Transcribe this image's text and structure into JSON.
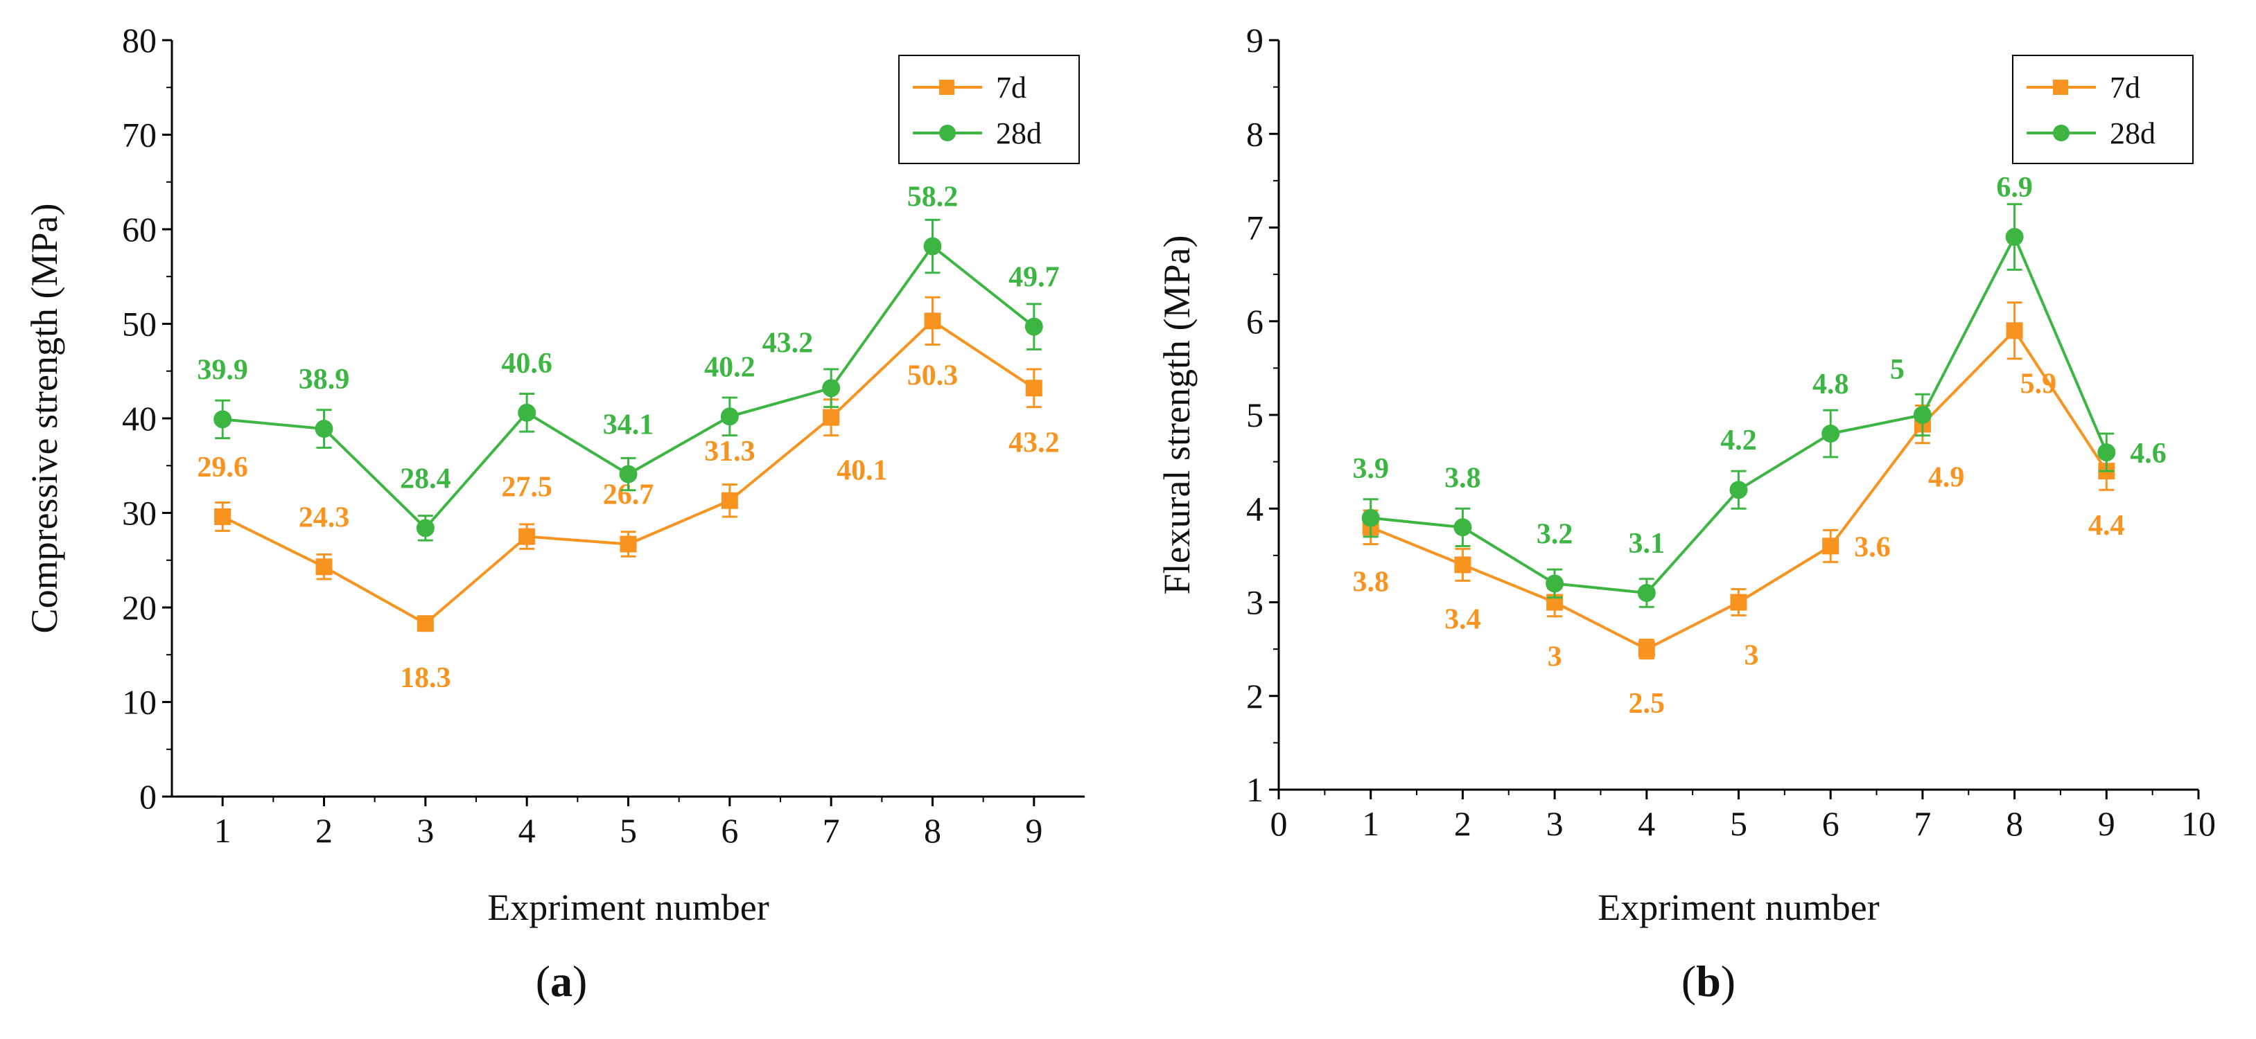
{
  "colors": {
    "series_7d": "#F7931E",
    "series_28d": "#3CB543",
    "axis": "#000000",
    "background": "#FFFFFF"
  },
  "chart_data": [
    {
      "type": "line",
      "panel_label": "(a)",
      "panel_letter": "a",
      "xlabel": "Expriment number",
      "ylabel": "Compressive strength (MPa)",
      "xlim": [
        0.5,
        9.5
      ],
      "ylim": [
        0,
        80
      ],
      "xticks": [
        1,
        2,
        3,
        4,
        5,
        6,
        7,
        8,
        9
      ],
      "yticks": [
        0,
        10,
        20,
        30,
        40,
        50,
        60,
        70,
        80
      ],
      "legend": {
        "placement": "top-right"
      },
      "x": [
        1,
        2,
        3,
        4,
        5,
        6,
        7,
        8,
        9
      ],
      "series": [
        {
          "name": "7d",
          "marker": "square",
          "values": [
            29.6,
            24.3,
            18.3,
            27.5,
            26.7,
            31.3,
            40.1,
            50.3,
            43.2
          ],
          "errors": [
            1.5,
            1.3,
            0.6,
            1.3,
            1.3,
            1.7,
            1.9,
            2.5,
            2.0
          ],
          "labels": [
            "29.6",
            "24.3",
            "18.3",
            "27.5",
            "26.7",
            "31.3",
            "40.1",
            "50.3",
            "43.2"
          ],
          "label_pos": [
            "above",
            "above",
            "below",
            "above",
            "above",
            "above",
            "below-right",
            "below",
            "below"
          ]
        },
        {
          "name": "28d",
          "marker": "circle",
          "values": [
            39.9,
            38.9,
            28.4,
            40.6,
            34.1,
            40.2,
            43.2,
            58.2,
            49.7
          ],
          "errors": [
            2.0,
            2.0,
            1.3,
            2.0,
            1.7,
            2.0,
            2.0,
            2.8,
            2.4
          ],
          "labels": [
            "39.9",
            "38.9",
            "28.4",
            "40.6",
            "34.1",
            "40.2",
            "43.2",
            "58.2",
            "49.7"
          ],
          "label_pos": [
            "above",
            "above",
            "above",
            "above",
            "above",
            "above",
            "above-left",
            "above",
            "above"
          ]
        }
      ]
    },
    {
      "type": "line",
      "panel_label": "(b)",
      "panel_letter": "b",
      "xlabel": "Expriment number",
      "ylabel": "Flexural strength (MPa)",
      "xlim": [
        0,
        10
      ],
      "ylim": [
        1,
        9
      ],
      "xticks": [
        0,
        1,
        2,
        3,
        4,
        5,
        6,
        7,
        8,
        9,
        10
      ],
      "yticks": [
        1,
        2,
        3,
        4,
        5,
        6,
        7,
        8,
        9
      ],
      "legend": {
        "placement": "top-right"
      },
      "x": [
        1,
        2,
        3,
        4,
        5,
        6,
        7,
        8,
        9
      ],
      "series": [
        {
          "name": "7d",
          "marker": "square",
          "values": [
            3.8,
            3.4,
            3.0,
            2.5,
            3.0,
            3.6,
            4.9,
            5.9,
            4.4
          ],
          "errors": [
            0.18,
            0.17,
            0.15,
            0.1,
            0.14,
            0.17,
            0.2,
            0.3,
            0.2
          ],
          "labels": [
            "3.8",
            "3.4",
            "3",
            "2.5",
            "3",
            "3.6",
            "4.9",
            "5.9",
            "4.4"
          ],
          "label_pos": [
            "below",
            "below",
            "below",
            "below",
            "below-right",
            "right",
            "below-right",
            "below-right",
            "below"
          ]
        },
        {
          "name": "28d",
          "marker": "circle",
          "values": [
            3.9,
            3.8,
            3.2,
            3.1,
            4.2,
            4.8,
            5.0,
            6.9,
            4.6
          ],
          "errors": [
            0.2,
            0.2,
            0.15,
            0.15,
            0.2,
            0.25,
            0.22,
            0.35,
            0.2
          ],
          "labels": [
            "3.9",
            "3.8",
            "3.2",
            "3.1",
            "4.2",
            "4.8",
            "5",
            "6.9",
            "4.6"
          ],
          "label_pos": [
            "above",
            "above",
            "above",
            "above",
            "above",
            "above",
            "above-left",
            "above",
            "right"
          ]
        }
      ]
    }
  ]
}
